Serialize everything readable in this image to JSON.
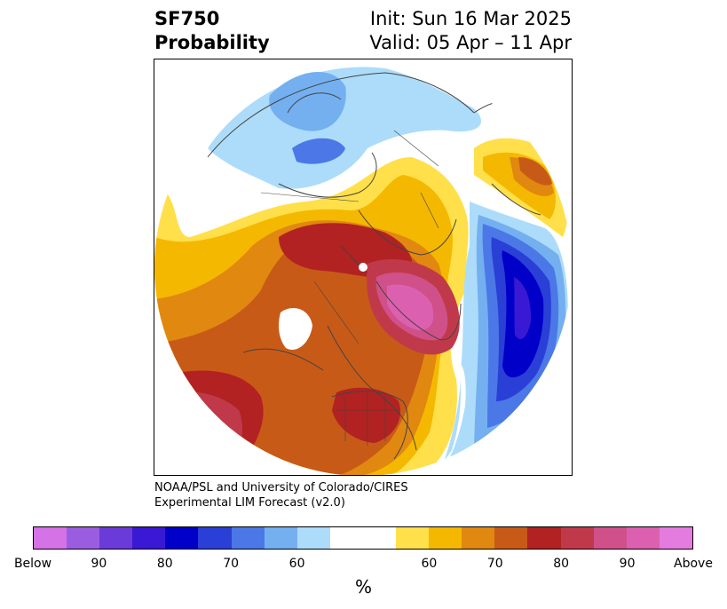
{
  "title": {
    "line1_left": "SF750",
    "line2_left": "Probability",
    "line1_right": "Init: Sun 16 Mar 2025",
    "line2_right": "Valid: 05 Apr – 11 Apr"
  },
  "credit": {
    "line1": "NOAA/PSL and University of Colorado/CIRES",
    "line2": "Experimental LIM Forecast (v2.0)"
  },
  "colorbar": {
    "colors": [
      "#d472e6",
      "#9b5de0",
      "#6a3bd8",
      "#3a19d4",
      "#0000c8",
      "#2a3fd6",
      "#4b78e6",
      "#74b0f0",
      "#acdcfa",
      "#ffffff",
      "#ffffff",
      "#ffe04a",
      "#f5b800",
      "#e08810",
      "#c85a18",
      "#b22222",
      "#c0394b",
      "#d0508a",
      "#dc60b0",
      "#e47ce0"
    ],
    "tick_labels": [
      "Below",
      "90",
      "80",
      "70",
      "60",
      "60",
      "70",
      "80",
      "90",
      "Above"
    ],
    "unit_label": "%"
  },
  "map": {
    "projection": "north-polar stereographic",
    "shaded_regions": [
      {
        "region": "Greenland / Canadian Arctic",
        "category": "above",
        "peak": "90+"
      },
      {
        "region": "Siberia / Arctic Ocean",
        "category": "above",
        "peak": "80"
      },
      {
        "region": "North Pacific",
        "category": "above",
        "peak": "80"
      },
      {
        "region": "Eastern United States",
        "category": "above",
        "peak": "80"
      },
      {
        "region": "North Atlantic",
        "category": "below",
        "peak": "90"
      },
      {
        "region": "Europe",
        "category": "below",
        "peak": "70"
      }
    ]
  }
}
